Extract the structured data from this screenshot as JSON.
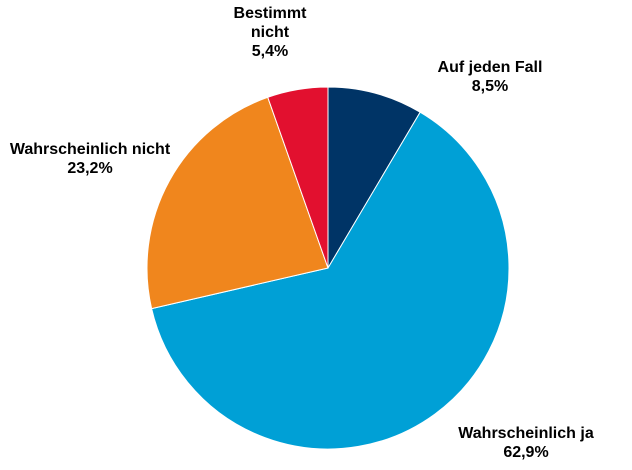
{
  "chart_data": {
    "type": "pie",
    "categories": [
      "Auf jeden Fall",
      "Wahrscheinlich ja",
      "Wahrscheinlich nicht",
      "Bestimmt nicht"
    ],
    "values": [
      8.5,
      62.9,
      23.2,
      5.4
    ],
    "value_labels": [
      "8,5%",
      "62,9%",
      "23,2%",
      "5,4%"
    ],
    "colors": [
      "#003466",
      "#00a0d6",
      "#f0861d",
      "#e2102f"
    ]
  }
}
